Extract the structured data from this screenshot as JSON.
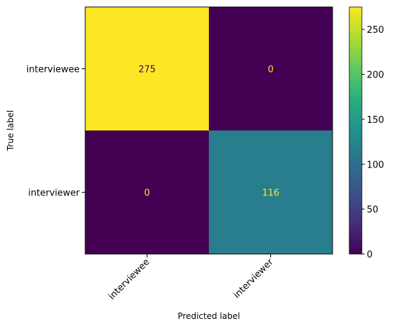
{
  "chart_data": {
    "type": "heatmap",
    "title": "",
    "xlabel": "Predicted label",
    "ylabel": "True label",
    "x_categories": [
      "interviewee",
      "interviewer"
    ],
    "y_categories": [
      "interviewee",
      "interviewer"
    ],
    "values": [
      [
        275,
        0
      ],
      [
        0,
        116
      ]
    ],
    "value_labels": [
      [
        "275",
        "0"
      ],
      [
        "0",
        "116"
      ]
    ],
    "colormap": "viridis",
    "color_range": [
      0,
      275
    ],
    "colorbar_ticks": [
      0,
      50,
      100,
      150,
      200,
      250
    ],
    "colorbar_tick_labels": [
      "0",
      "50",
      "100",
      "150",
      "200",
      "250"
    ],
    "colors": {
      "low": "#440154",
      "high": "#fde725",
      "text_on_dark": "#fde725",
      "text_on_light": "#440154"
    },
    "grid": false,
    "colorbar_placement": "right"
  }
}
